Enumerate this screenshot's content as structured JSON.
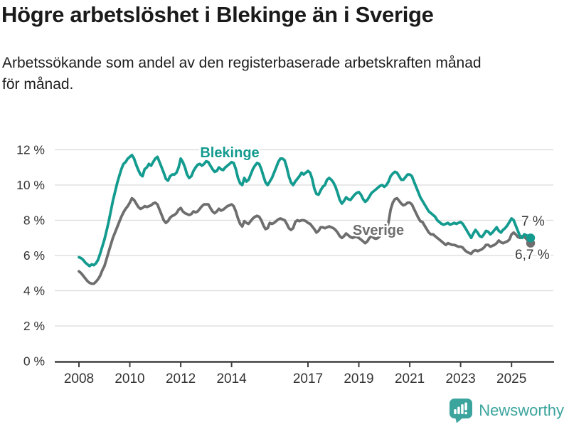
{
  "header": {
    "title": "Högre arbetslöshet i Blekinge än i Sverige",
    "subtitle_lines": [
      "Arbetssökande som andel av den registerbaserade arbetskraften månad",
      "för månad."
    ]
  },
  "footer": {
    "brand": "Newsworthy",
    "logo_icon": "speech-bubble-bar-chart"
  },
  "colors": {
    "blekinge": "#149B8F",
    "sverige": "#6E6E6E",
    "grid": "#DADADA",
    "axis": "#3F3F3F",
    "tick_label": "#333333",
    "end_label": "#3A3A3A",
    "brand": "#3BA49D"
  },
  "chart_data": {
    "type": "line",
    "title": "Högre arbetslöshet i Blekinge än i Sverige",
    "subtitle": "Arbetssökande som andel av den registerbaserade arbetskraften månad för månad.",
    "x_start": "2008-01",
    "x_end": "2025-10",
    "frequency": "monthly",
    "x_tick_years": [
      2008,
      2010,
      2012,
      2014,
      2017,
      2019,
      2021,
      2023,
      2025
    ],
    "y_ticks": [
      0,
      2,
      4,
      6,
      8,
      10,
      12
    ],
    "y_unit": " %",
    "ylim": [
      0,
      12.6
    ],
    "grid": true,
    "legend_position": "inline-labels",
    "series": [
      {
        "name": "Blekinge",
        "color": "#149B8F",
        "end_label": "7 %",
        "end_value": 7.0,
        "values": [
          5.9,
          5.85,
          5.75,
          5.6,
          5.5,
          5.4,
          5.5,
          5.45,
          5.55,
          5.75,
          6.1,
          6.5,
          6.9,
          7.4,
          7.9,
          8.5,
          9.1,
          9.6,
          10.1,
          10.5,
          10.9,
          11.2,
          11.3,
          11.5,
          11.6,
          11.7,
          11.5,
          11.15,
          10.85,
          10.6,
          10.5,
          10.9,
          11.0,
          11.2,
          11.1,
          11.3,
          11.5,
          11.6,
          11.3,
          11.0,
          10.7,
          10.35,
          10.25,
          10.5,
          10.6,
          10.6,
          10.7,
          11.0,
          11.5,
          11.3,
          11.0,
          10.6,
          10.4,
          10.5,
          10.8,
          11.0,
          11.15,
          11.2,
          11.1,
          11.2,
          11.35,
          11.3,
          11.1,
          10.9,
          10.75,
          10.8,
          11.0,
          10.9,
          10.85,
          11.0,
          11.1,
          11.2,
          11.3,
          11.25,
          10.9,
          10.4,
          10.1,
          10.0,
          10.4,
          10.2,
          10.3,
          10.6,
          10.9,
          11.1,
          11.25,
          11.2,
          10.9,
          10.5,
          10.15,
          10.0,
          10.2,
          10.4,
          10.7,
          11.0,
          11.3,
          11.5,
          11.5,
          11.4,
          11.0,
          10.5,
          10.15,
          10.0,
          10.2,
          10.35,
          10.5,
          10.7,
          10.6,
          10.7,
          10.8,
          10.7,
          10.35,
          9.8,
          9.5,
          9.45,
          9.7,
          9.9,
          10.0,
          10.3,
          10.4,
          10.3,
          10.15,
          9.9,
          9.55,
          9.15,
          8.95,
          9.1,
          9.3,
          9.2,
          9.15,
          9.3,
          9.45,
          9.55,
          9.6,
          9.45,
          9.2,
          9.05,
          9.15,
          9.35,
          9.55,
          9.65,
          9.75,
          9.85,
          9.95,
          10.0,
          9.9,
          10.0,
          10.2,
          10.5,
          10.65,
          10.75,
          10.7,
          10.5,
          10.3,
          10.3,
          10.45,
          10.6,
          10.6,
          10.5,
          10.2,
          9.9,
          9.6,
          9.3,
          9.1,
          8.9,
          8.7,
          8.5,
          8.4,
          8.3,
          8.2,
          8.0,
          7.9,
          7.8,
          7.75,
          7.8,
          7.85,
          7.75,
          7.8,
          7.85,
          7.8,
          7.85,
          7.9,
          7.8,
          7.6,
          7.4,
          7.2,
          7.0,
          7.25,
          7.45,
          7.3,
          7.1,
          7.05,
          7.2,
          7.4,
          7.35,
          7.2,
          7.3,
          7.45,
          7.6,
          7.4,
          7.3,
          7.45,
          7.55,
          7.7,
          7.9,
          8.1,
          8.0,
          7.7,
          7.4,
          7.1,
          7.0,
          7.2,
          7.15,
          7.05,
          7.0
        ]
      },
      {
        "name": "Sverige",
        "color": "#6E6E6E",
        "end_label": "6,7 %",
        "end_value": 6.7,
        "values": [
          5.1,
          5.0,
          4.85,
          4.7,
          4.55,
          4.45,
          4.4,
          4.4,
          4.5,
          4.65,
          4.85,
          5.15,
          5.4,
          5.8,
          6.2,
          6.6,
          7.0,
          7.3,
          7.6,
          7.9,
          8.2,
          8.45,
          8.65,
          8.8,
          9.0,
          9.25,
          9.15,
          8.95,
          8.75,
          8.65,
          8.7,
          8.8,
          8.75,
          8.8,
          8.85,
          8.95,
          9.0,
          8.9,
          8.6,
          8.3,
          8.0,
          7.85,
          7.95,
          8.15,
          8.25,
          8.3,
          8.4,
          8.6,
          8.7,
          8.5,
          8.4,
          8.35,
          8.3,
          8.35,
          8.5,
          8.45,
          8.5,
          8.65,
          8.8,
          8.9,
          8.9,
          8.9,
          8.7,
          8.5,
          8.4,
          8.5,
          8.65,
          8.55,
          8.6,
          8.7,
          8.8,
          8.85,
          8.9,
          8.8,
          8.5,
          8.1,
          7.8,
          7.65,
          7.95,
          7.85,
          7.8,
          7.95,
          8.1,
          8.2,
          8.25,
          8.2,
          8.0,
          7.7,
          7.5,
          7.55,
          7.85,
          7.8,
          7.85,
          7.95,
          8.05,
          8.1,
          8.05,
          8.0,
          7.8,
          7.55,
          7.45,
          7.55,
          7.9,
          8.0,
          7.95,
          8.0,
          8.0,
          7.95,
          7.85,
          7.8,
          7.65,
          7.5,
          7.3,
          7.4,
          7.6,
          7.6,
          7.55,
          7.6,
          7.65,
          7.6,
          7.55,
          7.45,
          7.3,
          7.1,
          7.0,
          7.1,
          7.25,
          7.15,
          7.05,
          7.0,
          7.05,
          7.05,
          7.0,
          6.9,
          6.8,
          6.7,
          6.8,
          7.0,
          7.1,
          7.0,
          6.95,
          7.0,
          7.1,
          7.3,
          7.4,
          7.4,
          7.9,
          8.6,
          9.0,
          9.2,
          9.25,
          9.1,
          8.95,
          8.85,
          8.9,
          9.0,
          9.0,
          8.9,
          8.65,
          8.4,
          8.15,
          7.95,
          7.9,
          7.7,
          7.5,
          7.3,
          7.2,
          7.2,
          7.1,
          7.0,
          6.9,
          6.8,
          6.7,
          6.6,
          6.7,
          6.65,
          6.6,
          6.6,
          6.55,
          6.5,
          6.5,
          6.45,
          6.3,
          6.2,
          6.15,
          6.1,
          6.25,
          6.3,
          6.25,
          6.3,
          6.35,
          6.45,
          6.6,
          6.6,
          6.5,
          6.55,
          6.6,
          6.7,
          6.85,
          6.75,
          6.7,
          6.75,
          6.8,
          6.9,
          7.2,
          7.3,
          7.2,
          7.05,
          7.0,
          7.1,
          7.05,
          6.95,
          6.8,
          6.7
        ]
      }
    ]
  }
}
